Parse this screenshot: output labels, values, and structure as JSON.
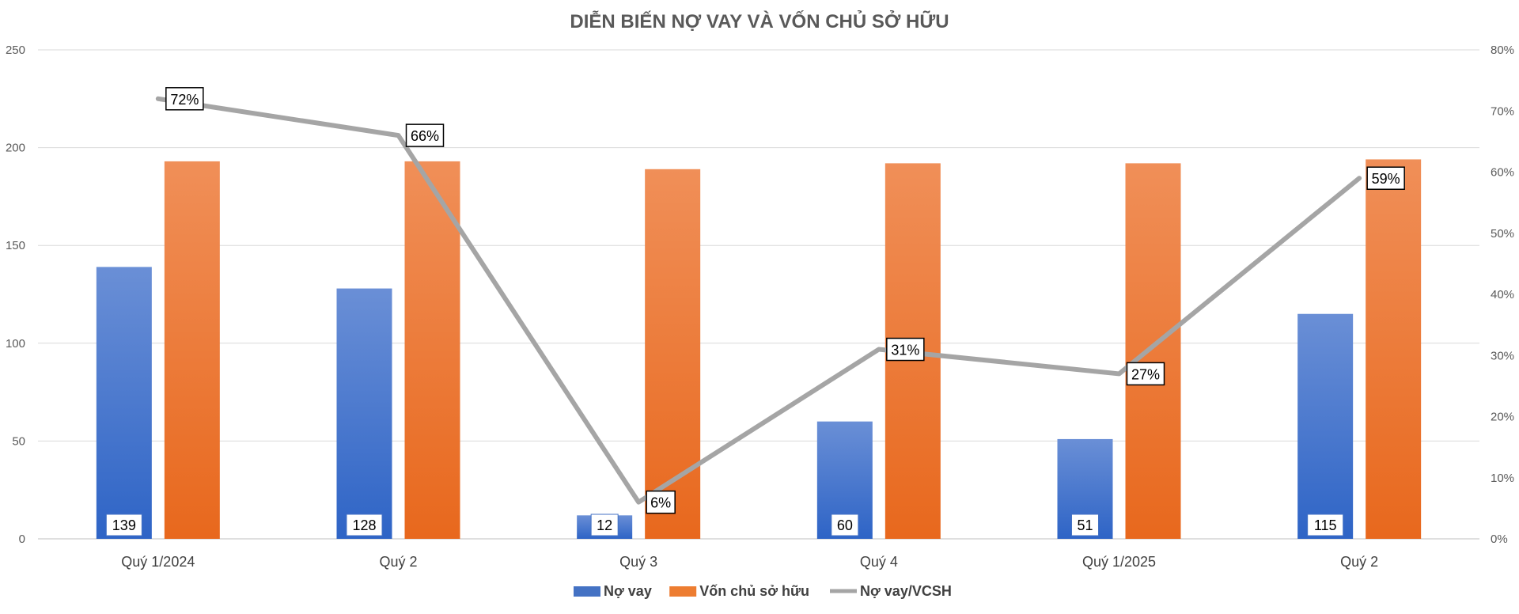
{
  "chart_data": {
    "type": "bar",
    "title": "DIỄN BIẾN NỢ VAY VÀ VỐN CHỦ SỞ HỮU",
    "categories": [
      "Quý 1/2024",
      "Quý 2",
      "Quý 3",
      "Quý 4",
      "Quý 1/2025",
      "Quý 2"
    ],
    "series": [
      {
        "name": "Nợ vay",
        "type": "bar",
        "axis": "left",
        "values": [
          139,
          128,
          12,
          60,
          51,
          115
        ],
        "labels": [
          "139",
          "128",
          "12",
          "60",
          "51",
          "115"
        ],
        "color": "#4472C4"
      },
      {
        "name": "Vốn chủ sở hữu",
        "type": "bar",
        "axis": "left",
        "values": [
          193,
          193,
          189,
          192,
          192,
          194
        ],
        "color": "#ED7D31"
      },
      {
        "name": "Nợ vay/VCSH",
        "type": "line",
        "axis": "right",
        "values": [
          0.72,
          0.66,
          0.06,
          0.31,
          0.27,
          0.59
        ],
        "labels": [
          "72%",
          "66%",
          "6%",
          "31%",
          "27%",
          "59%"
        ],
        "color": "#A5A5A5"
      }
    ],
    "y_left": {
      "min": 0,
      "max": 250,
      "ticks": [
        "0",
        "50",
        "100",
        "150",
        "200",
        "250"
      ]
    },
    "y_right": {
      "min": 0,
      "max": 0.8,
      "ticks": [
        "0%",
        "10%",
        "20%",
        "30%",
        "40%",
        "50%",
        "60%",
        "70%",
        "80%"
      ]
    },
    "grid": true,
    "legend_position": "bottom"
  }
}
